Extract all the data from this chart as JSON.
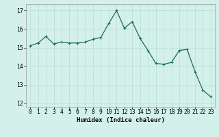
{
  "x": [
    0,
    1,
    2,
    3,
    4,
    5,
    6,
    7,
    8,
    9,
    10,
    11,
    12,
    13,
    14,
    15,
    16,
    17,
    18,
    19,
    20,
    21,
    22,
    23
  ],
  "y": [
    15.1,
    15.25,
    15.6,
    15.2,
    15.3,
    15.25,
    15.25,
    15.3,
    15.45,
    15.55,
    16.3,
    17.0,
    16.05,
    16.4,
    15.5,
    14.85,
    14.15,
    14.1,
    14.2,
    14.85,
    14.9,
    13.7,
    12.7,
    12.35
  ],
  "line_color": "#1a6b5a",
  "marker": "+",
  "marker_size": 3,
  "marker_lw": 0.8,
  "line_width": 0.9,
  "bg_color": "#d4f0eb",
  "grid_color": "#b8ddd8",
  "xlabel": "Humidex (Indice chaleur)",
  "ylim": [
    11.8,
    17.35
  ],
  "xlim": [
    -0.5,
    23.5
  ],
  "yticks": [
    12,
    13,
    14,
    15,
    16,
    17
  ],
  "xticks": [
    0,
    1,
    2,
    3,
    4,
    5,
    6,
    7,
    8,
    9,
    10,
    11,
    12,
    13,
    14,
    15,
    16,
    17,
    18,
    19,
    20,
    21,
    22,
    23
  ],
  "xlabel_fontsize": 6.5,
  "tick_fontsize": 5.8
}
